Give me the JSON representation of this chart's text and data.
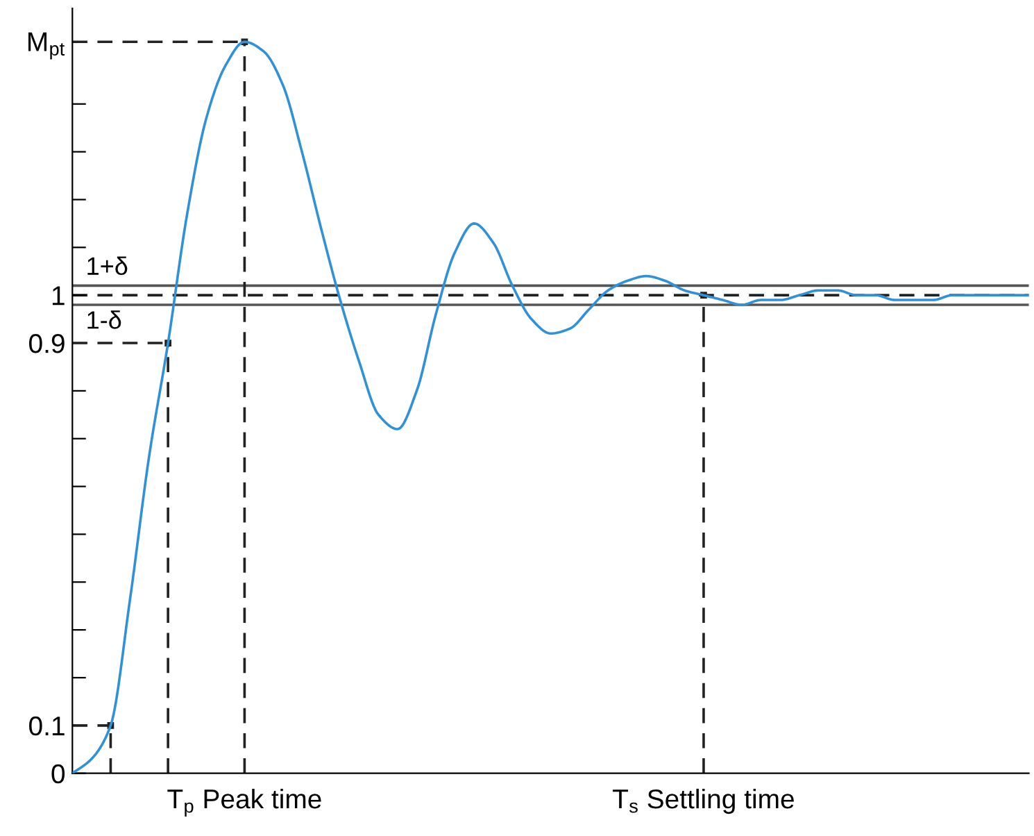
{
  "chart_data": {
    "type": "line",
    "categories": [
      null,
      null,
      null,
      null,
      null,
      null,
      null,
      null,
      null,
      "T$_{p}$ Peak time",
      null,
      null,
      null,
      null,
      null,
      null,
      null,
      null,
      null,
      null,
      null,
      null,
      null,
      null,
      null,
      null,
      null,
      null,
      null,
      null,
      null,
      null,
      null,
      "T$_{s}$ Settling time",
      null,
      null,
      null,
      null,
      null,
      null,
      null,
      null,
      null,
      null,
      null,
      null,
      null,
      null,
      null,
      null,
      null
    ],
    "ylim": [
      0,
      1.6
    ],
    "yticks": [
      0,
      0.1,
      {
        "value": 0.2,
        "label": null
      },
      {
        "value": 0.3,
        "label": null
      },
      {
        "value": 0.4,
        "label": null
      },
      {
        "value": 0.5,
        "label": null
      },
      {
        "value": 0.6,
        "label": null
      },
      {
        "value": 0.7,
        "label": null
      },
      {
        "value": 0.8,
        "label": null
      },
      0.9,
      1,
      {
        "value": 1.1,
        "label": null
      },
      {
        "value": 1.2,
        "label": null
      },
      {
        "value": 1.3,
        "label": null
      },
      {
        "value": 1.4,
        "label": null
      },
      {
        "value": 1.53,
        "label": "M$_{pt}$"
      }
    ],
    "grid": false,
    "marker": "none",
    "series": [
      {
        "color": "#3090d8",
        "line_style": "solid",
        "values": [
          0,
          0.03,
          0.1,
          0.36,
          0.66,
          0.9,
          1.17,
          1.37,
          1.48,
          1.53,
          1.51,
          1.44,
          1.3,
          1.14,
          0.99,
          0.86,
          0.75,
          0.72,
          0.8,
          0.96,
          1.09,
          1.15,
          1.11,
          1.02,
          0.95,
          0.92,
          0.93,
          0.97,
          1.01,
          1.03,
          1.04,
          1.03,
          1.01,
          1.0,
          0.99,
          0.98,
          0.99,
          0.99,
          1.0,
          1.01,
          1.01,
          1.0,
          1.0,
          0.99,
          0.99,
          0.99,
          1.0,
          1.0,
          1.0,
          1.0,
          1.0
        ]
      },
      {
        "color": "#222222",
        "line_style": "dashed",
        "values": [
          1.53,
          1.53,
          1.53,
          1.53,
          1.53,
          1.53,
          1.53,
          1.53,
          1.53,
          1.53,
          null,
          null,
          null,
          null,
          null,
          null,
          null,
          null,
          null,
          null,
          null,
          null,
          null,
          null,
          null,
          null,
          null,
          null,
          null,
          null,
          null,
          null,
          null,
          null,
          null,
          null,
          null,
          null,
          null,
          null,
          null,
          null,
          null,
          null,
          null,
          null,
          null,
          null,
          null,
          null,
          null
        ]
      },
      {
        "color": "#222222",
        "line_style": "dashed",
        "values": [
          0.9,
          0.9,
          0.9,
          0.9,
          0.9,
          0.9,
          null,
          null,
          null,
          null,
          null,
          null,
          null,
          null,
          null,
          null,
          null,
          null,
          null,
          null,
          null,
          null,
          null,
          null,
          null,
          null,
          null,
          null,
          null,
          null,
          null,
          null,
          null,
          null,
          null,
          null,
          null,
          null,
          null,
          null,
          null,
          null,
          null,
          null,
          null,
          null,
          null,
          null,
          null,
          null,
          null
        ]
      },
      {
        "color": "#222222",
        "line_style": "dashed",
        "values": [
          0.1,
          0.1,
          0.1,
          null,
          null,
          null,
          null,
          null,
          null,
          null,
          null,
          null,
          null,
          null,
          null,
          null,
          null,
          null,
          null,
          null,
          null,
          null,
          null,
          null,
          null,
          null,
          null,
          null,
          null,
          null,
          null,
          null,
          null,
          null,
          null,
          null,
          null,
          null,
          null,
          null,
          null,
          null,
          null,
          null,
          null,
          null,
          null,
          null,
          null,
          null,
          null
        ]
      },
      {
        "type": "lollipop",
        "color": "#222222",
        "line_style": "dashed",
        "marker": "square",
        "values": [
          null,
          null,
          0.1,
          null,
          null,
          0.9,
          null,
          null,
          null,
          1.53,
          null,
          null,
          null,
          null,
          null,
          null,
          null,
          null,
          null,
          null,
          null,
          null,
          null,
          null,
          null,
          null,
          null,
          null,
          null,
          null,
          null,
          null,
          null,
          1.0,
          null,
          null,
          null,
          null,
          null,
          null,
          null,
          null,
          null,
          null,
          null,
          null,
          null,
          null,
          null,
          null,
          null
        ]
      }
    ],
    "ref_lines": [
      {
        "axis": "y",
        "value": 1.02,
        "label": "1+δ",
        "color": "#555555",
        "line_style": "solid"
      },
      {
        "axis": "y",
        "value": 1,
        "label": null,
        "color": "#222222",
        "line_style": "dashed"
      },
      {
        "axis": "y",
        "value": 0.98,
        "label": "1-δ",
        "color": "#555555",
        "line_style": "solid"
      }
    ]
  }
}
